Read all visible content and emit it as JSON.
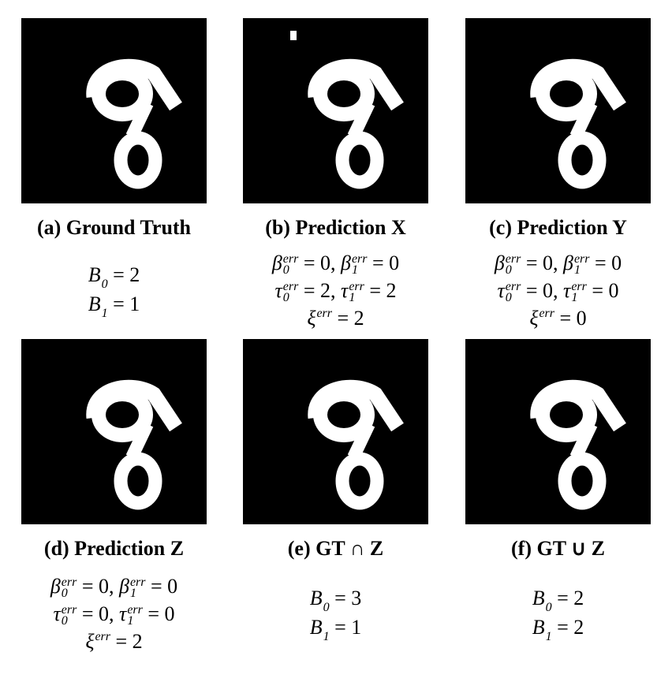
{
  "panels": [
    {
      "caption": "(a) Ground Truth",
      "extra_blob": false,
      "equations": [
        [
          {
            "t": "B",
            "sub": "0"
          },
          {
            "t": " = 2"
          }
        ],
        [
          {
            "t": "B",
            "sub": "1"
          },
          {
            "t": " = 1"
          }
        ]
      ]
    },
    {
      "caption": "(b) Prediction X",
      "extra_blob": true,
      "equations": [
        [
          {
            "t": "β",
            "sub": "0",
            "sup": "err"
          },
          {
            "t": " = 0, "
          },
          {
            "t": "β",
            "sub": "1",
            "sup": "err"
          },
          {
            "t": " = 0"
          }
        ],
        [
          {
            "t": "τ",
            "sub": "0",
            "sup": "err"
          },
          {
            "t": " = 2, "
          },
          {
            "t": "τ",
            "sub": "1",
            "sup": "err"
          },
          {
            "t": " = 2"
          }
        ],
        [
          {
            "t": "ξ",
            "sup": "err"
          },
          {
            "t": " = 2"
          }
        ]
      ]
    },
    {
      "caption": "(c) Prediction Y",
      "extra_blob": false,
      "equations": [
        [
          {
            "t": "β",
            "sub": "0",
            "sup": "err"
          },
          {
            "t": " = 0, "
          },
          {
            "t": "β",
            "sub": "1",
            "sup": "err"
          },
          {
            "t": " = 0"
          }
        ],
        [
          {
            "t": "τ",
            "sub": "0",
            "sup": "err"
          },
          {
            "t": " = 0, "
          },
          {
            "t": "τ",
            "sub": "1",
            "sup": "err"
          },
          {
            "t": " = 0"
          }
        ],
        [
          {
            "t": "ξ",
            "sup": "err"
          },
          {
            "t": " = 0"
          }
        ]
      ]
    },
    {
      "caption": "(d) Prediction Z",
      "extra_blob": false,
      "equations": [
        [
          {
            "t": "β",
            "sub": "0",
            "sup": "err"
          },
          {
            "t": " = 0, "
          },
          {
            "t": "β",
            "sub": "1",
            "sup": "err"
          },
          {
            "t": " = 0"
          }
        ],
        [
          {
            "t": "τ",
            "sub": "0",
            "sup": "err"
          },
          {
            "t": " = 0, "
          },
          {
            "t": "τ",
            "sub": "1",
            "sup": "err"
          },
          {
            "t": " = 0"
          }
        ],
        [
          {
            "t": "ξ",
            "sup": "err"
          },
          {
            "t": " = 2"
          }
        ]
      ]
    },
    {
      "caption": "(e) GT ∩ Z",
      "extra_blob": false,
      "equations": [
        [
          {
            "t": "B",
            "sub": "0"
          },
          {
            "t": " = 3"
          }
        ],
        [
          {
            "t": "B",
            "sub": "1"
          },
          {
            "t": " = 1"
          }
        ]
      ]
    },
    {
      "caption": "(f) GT ∪ Z",
      "extra_blob": false,
      "equations": [
        [
          {
            "t": "B",
            "sub": "0"
          },
          {
            "t": " = 2"
          }
        ],
        [
          {
            "t": "B",
            "sub": "1"
          },
          {
            "t": " = 2"
          }
        ]
      ]
    }
  ]
}
